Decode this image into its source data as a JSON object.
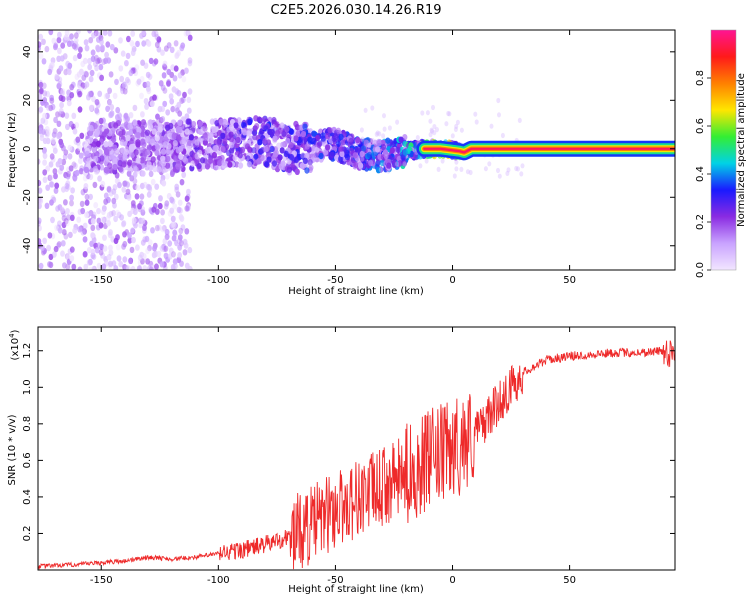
{
  "title": "C2E5.2026.030.14.26.R19",
  "chart_data": [
    {
      "type": "heatmap",
      "name": "spectrogram",
      "xlabel": "Height of straight line (km)",
      "ylabel": "Frequency (Hz)",
      "xlim": [
        -177,
        95
      ],
      "ylim": [
        -50,
        49
      ],
      "xticks": [
        -150,
        -100,
        -50,
        0,
        50
      ],
      "xtick_labels": [
        "-150",
        "-100",
        "-50",
        "0",
        "50"
      ],
      "yticks": [
        -40,
        -20,
        0,
        20,
        40
      ],
      "ytick_labels": [
        "-40",
        "-20",
        "0",
        "20",
        "40"
      ],
      "colorbar": {
        "label": "Normalized spectral amplitude",
        "range": [
          0,
          1
        ],
        "ticks": [
          0.0,
          0.2,
          0.4,
          0.6,
          0.8
        ],
        "tick_labels": [
          "0.0",
          "0.2",
          "0.4",
          "0.6",
          "0.8"
        ],
        "colors": [
          "#f2e6ff",
          "#c9a3ff",
          "#8a2be2",
          "#1a1aff",
          "#00d2e6",
          "#33ee33",
          "#ffe600",
          "#ff8000",
          "#ff1a1a",
          "#ff1493"
        ]
      },
      "signal_trace": [
        {
          "x": -155,
          "y": 0,
          "amp": 0.3
        },
        {
          "x": -140,
          "y": 1,
          "amp": 0.3
        },
        {
          "x": -120,
          "y": 1,
          "amp": 0.32
        },
        {
          "x": -100,
          "y": 2,
          "amp": 0.35
        },
        {
          "x": -90,
          "y": 3,
          "amp": 0.4
        },
        {
          "x": -80,
          "y": 3,
          "amp": 0.42
        },
        {
          "x": -70,
          "y": 0,
          "amp": 0.4
        },
        {
          "x": -60,
          "y": 1,
          "amp": 0.45
        },
        {
          "x": -50,
          "y": 2,
          "amp": 0.45
        },
        {
          "x": -40,
          "y": -2,
          "amp": 0.45
        },
        {
          "x": -30,
          "y": -3,
          "amp": 0.5
        },
        {
          "x": -20,
          "y": -1,
          "amp": 0.6
        },
        {
          "x": -12,
          "y": 0,
          "amp": 0.7
        },
        {
          "x": -5,
          "y": 0,
          "amp": 0.8
        },
        {
          "x": 3,
          "y": -1,
          "amp": 0.85
        },
        {
          "x": 5,
          "y": -1.5,
          "amp": 0.85
        },
        {
          "x": 8,
          "y": 0,
          "amp": 0.9
        },
        {
          "x": 20,
          "y": 0,
          "amp": 0.95
        },
        {
          "x": 50,
          "y": 0,
          "amp": 0.98
        },
        {
          "x": 95,
          "y": 0,
          "amp": 1.0
        }
      ]
    },
    {
      "type": "line",
      "name": "snr",
      "xlabel": "Height of straight line (km)",
      "ylabel": "SNR (10 * v/v)",
      "exponent_label": "(x10",
      "exponent_power": "4",
      "exponent_close": ")",
      "xlim": [
        -177,
        95
      ],
      "ylim": [
        0,
        1.33
      ],
      "xticks": [
        -150,
        -100,
        -50,
        0,
        50
      ],
      "xtick_labels": [
        "-150",
        "-100",
        "-50",
        "0",
        "50"
      ],
      "yticks": [
        0.2,
        0.4,
        0.6,
        0.8,
        1.0,
        1.2
      ],
      "ytick_labels": [
        "0.2",
        "0.4",
        "0.6",
        "0.8",
        "1.0",
        "1.2"
      ],
      "color": "#ee2a2a",
      "series": [
        {
          "name": "SNR",
          "x": [
            -177,
            -160,
            -140,
            -130,
            -120,
            -110,
            -100,
            -90,
            -80,
            -70,
            -60,
            -50,
            -40,
            -30,
            -20,
            -10,
            0,
            10,
            20,
            30,
            40,
            50,
            60,
            70,
            80,
            90,
            95
          ],
          "y": [
            0.02,
            0.03,
            0.05,
            0.07,
            0.06,
            0.07,
            0.09,
            0.11,
            0.14,
            0.18,
            0.25,
            0.33,
            0.4,
            0.45,
            0.52,
            0.6,
            0.66,
            0.75,
            0.92,
            1.08,
            1.15,
            1.17,
            1.18,
            1.19,
            1.19,
            1.2,
            1.2
          ]
        }
      ]
    }
  ]
}
